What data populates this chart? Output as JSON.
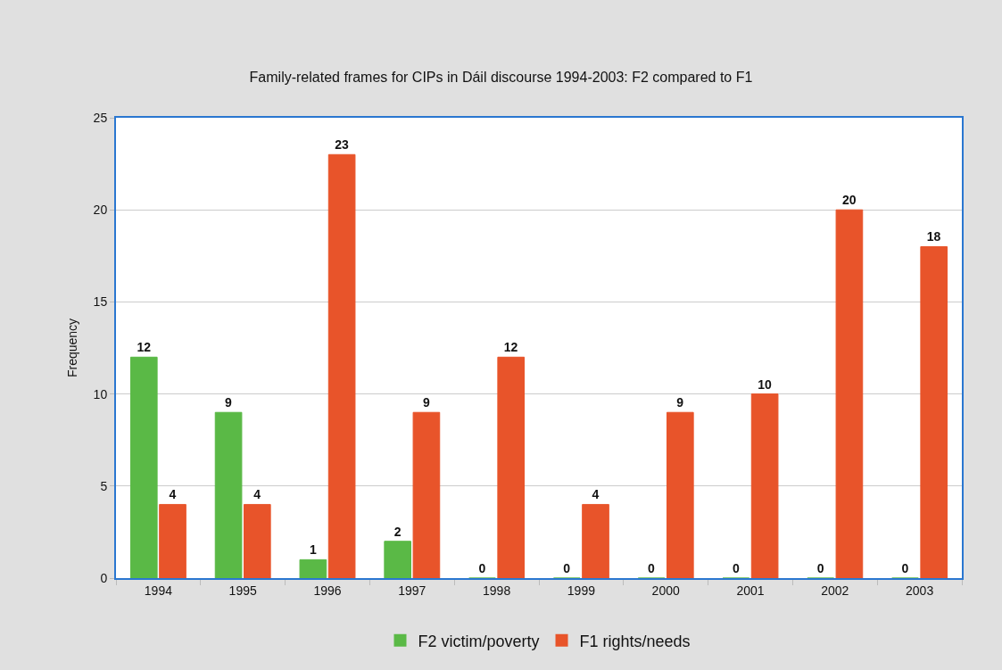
{
  "chart_data": {
    "type": "bar",
    "title": "Family-related frames for CIPs in Dáil discourse 1994-2003: F2 compared to F1",
    "ylabel": "Frequency",
    "categories": [
      "1994",
      "1995",
      "1996",
      "1997",
      "1998",
      "1999",
      "2000",
      "2001",
      "2002",
      "2003"
    ],
    "series": [
      {
        "name": "F2 victim/poverty",
        "color": "#5ab946",
        "values": [
          12,
          9,
          1,
          2,
          0,
          0,
          0,
          0,
          0,
          0
        ]
      },
      {
        "name": "F1 rights/needs",
        "color": "#e8542a",
        "values": [
          4,
          4,
          23,
          9,
          12,
          4,
          9,
          10,
          20,
          18
        ]
      }
    ],
    "ylim": [
      0,
      25
    ],
    "yticks": [
      0,
      5,
      10,
      15,
      20,
      25
    ],
    "grid": "y",
    "legend": "bottom",
    "data_labels": true
  }
}
